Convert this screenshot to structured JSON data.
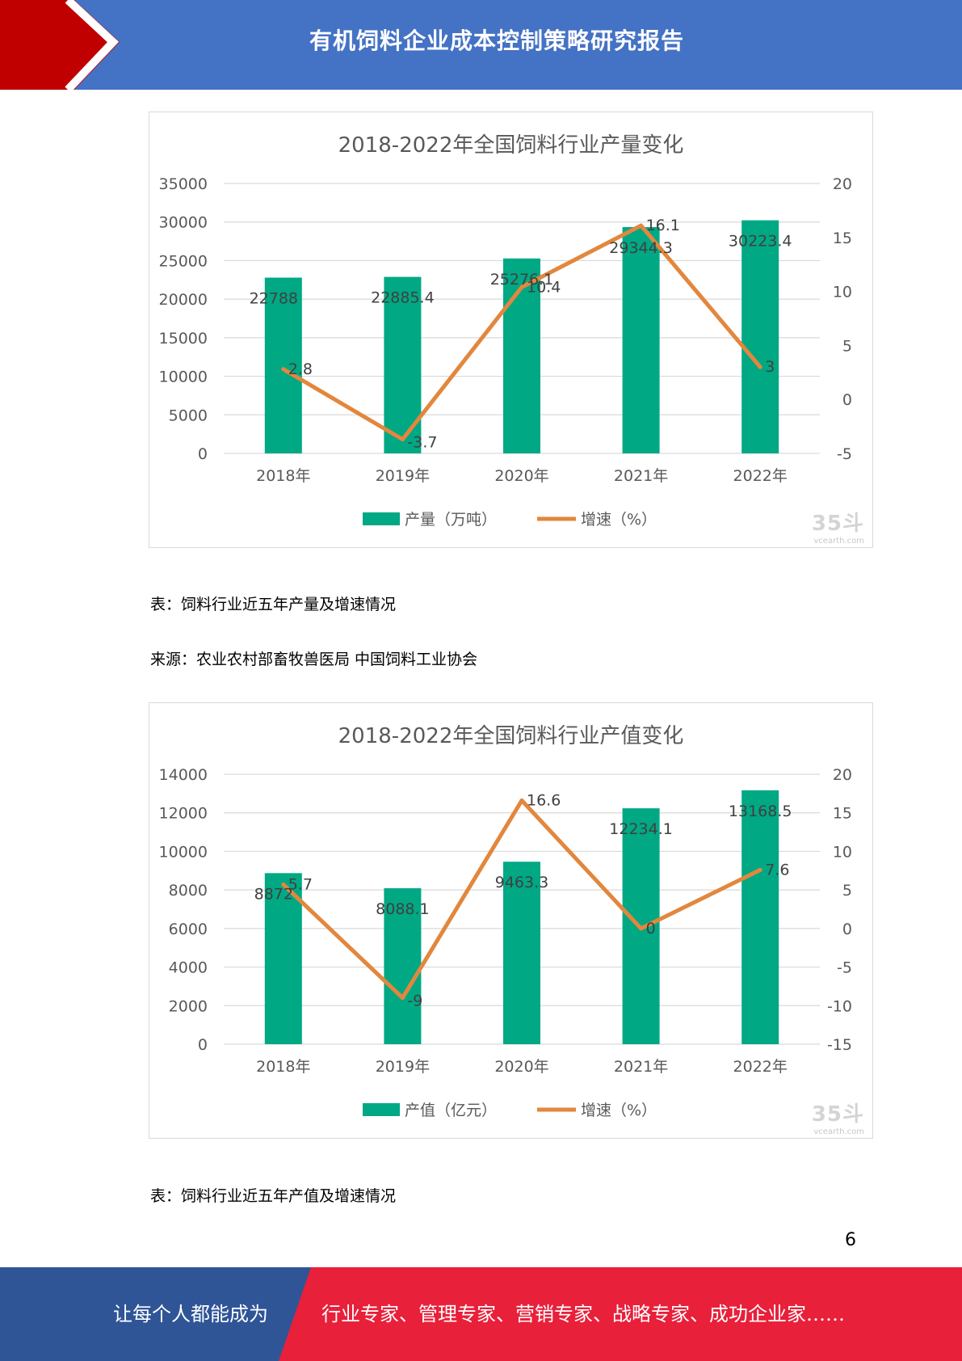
{
  "header": {
    "title": "有机饲料企业成本控制策略研究报告"
  },
  "charts": [
    {
      "chart_data": {
        "type": "bar",
        "title": "2018-2022年全国饲料行业产量变化",
        "categories": [
          "2018年",
          "2019年",
          "2020年",
          "2021年",
          "2022年"
        ],
        "series": [
          {
            "name": "产量（万吨）",
            "type": "bar",
            "axis": "left",
            "values": [
              22788,
              22885.4,
              25276.1,
              29344.3,
              30223.4
            ],
            "labels": [
              "22788",
              "22885.4",
              "25276.1",
              "29344.3",
              "30223.4"
            ],
            "color": "#00a884"
          },
          {
            "name": "增速（%）",
            "type": "line",
            "axis": "right",
            "values": [
              2.8,
              -3.7,
              10.4,
              16.1,
              3
            ],
            "labels": [
              "2.8",
              "-3.7",
              "10.4",
              "16.1",
              "3"
            ],
            "color": "#e2873d"
          }
        ],
        "ylim": [
          0,
          35000
        ],
        "y_ticks": [
          "35000",
          "30000",
          "25000",
          "20000",
          "15000",
          "10000",
          "5000",
          "0"
        ],
        "y2lim": [
          -5,
          20
        ],
        "y2_ticks": [
          "20",
          "15",
          "10",
          "5",
          "0",
          "-5"
        ],
        "grid": true,
        "legend": "bottom"
      },
      "watermark": {
        "big": "35斗",
        "small": "vcearth.com"
      }
    },
    {
      "chart_data": {
        "type": "bar",
        "title": "2018-2022年全国饲料行业产值变化",
        "categories": [
          "2018年",
          "2019年",
          "2020年",
          "2021年",
          "2022年"
        ],
        "series": [
          {
            "name": "产值（亿元）",
            "type": "bar",
            "axis": "left",
            "values": [
              8872,
              8088.1,
              9463.3,
              12234.1,
              13168.5
            ],
            "labels": [
              "8872",
              "8088.1",
              "9463.3",
              "12234.1",
              "13168.5"
            ],
            "color": "#00a884"
          },
          {
            "name": "增速（%）",
            "type": "line",
            "axis": "right",
            "values": [
              5.7,
              -9,
              16.6,
              0,
              7.6
            ],
            "labels": [
              "5.7",
              "-9",
              "16.6",
              "0",
              "7.6"
            ],
            "color": "#e2873d"
          }
        ],
        "ylim": [
          0,
          14000
        ],
        "y_ticks": [
          "14000",
          "12000",
          "10000",
          "8000",
          "6000",
          "4000",
          "2000",
          "0"
        ],
        "y2lim": [
          -15,
          20
        ],
        "y2_ticks": [
          "20",
          "15",
          "10",
          "5",
          "0",
          "-5",
          "-10",
          "-15"
        ],
        "grid": true,
        "legend": "bottom"
      },
      "watermark": {
        "big": "35斗",
        "small": "vcearth.com"
      }
    }
  ],
  "captions": {
    "table1": "表：饲料行业近五年产量及增速情况",
    "source": "来源：农业农村部畜牧兽医局  中国饲料工业协会",
    "table2": "表：饲料行业近五年产值及增速情况"
  },
  "page_number": "6",
  "footer": {
    "left_text": "让每个人都能成为",
    "right_text": "行业专家、管理专家、营销专家、战略专家、成功企业家……"
  },
  "colors": {
    "header_blue": "#4472c4",
    "header_red": "#c00000",
    "footer_blue": "#2f5597",
    "footer_red": "#e8203a"
  }
}
